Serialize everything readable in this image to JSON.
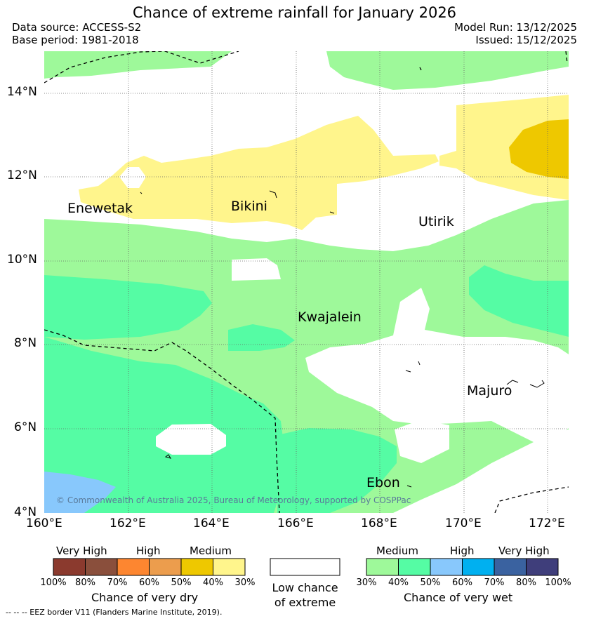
{
  "header": {
    "title": "Chance of extreme rainfall for January 2026",
    "data_source": "Data source: ACCESS-S2",
    "base_period": "Base period: 1981-2018",
    "model_run": "Model Run: 13/12/2025",
    "issued": "Issued: 15/12/2025"
  },
  "map": {
    "lat_labels": [
      "14°N",
      "12°N",
      "10°N",
      "8°N",
      "6°N",
      "4°N"
    ],
    "lon_labels": [
      "160°E",
      "162°E",
      "164°E",
      "166°E",
      "168°E",
      "170°E",
      "172°E"
    ],
    "places": [
      "Enewetak",
      "Bikini",
      "Utirik",
      "Kwajalein",
      "Majuro",
      "Ebon"
    ],
    "copyright": "© Commonwealth of Australia 2025, Bureau of Meteorology, supported by COSPPac",
    "colors": {
      "dry_medium_40": "#fff58c",
      "dry_medium_50": "#eec800",
      "wet_medium_30": "#9ef99a",
      "wet_medium_40": "#55fca4",
      "wet_high_50": "#88c8fc"
    }
  },
  "legend": {
    "dry": {
      "captions": [
        "Very High",
        "High",
        "Medium"
      ],
      "colors": [
        "#8b3a2e",
        "#8a4f3c",
        "#fd8630",
        "#ec9d4d",
        "#eec800",
        "#fff58c"
      ],
      "percents": [
        "100%",
        "80%",
        "70%",
        "60%",
        "50%",
        "40%",
        "30%"
      ],
      "title": "Chance of very dry"
    },
    "neutral": {
      "line1": "Low chance",
      "line2": "of extreme"
    },
    "wet": {
      "captions": [
        "Medium",
        "High",
        "Very High"
      ],
      "colors": [
        "#9ef99a",
        "#55fca4",
        "#88c8fc",
        "#00b0f0",
        "#3a62a0",
        "#3f3e7b"
      ],
      "percents": [
        "30%",
        "40%",
        "50%",
        "60%",
        "70%",
        "80%",
        "100%"
      ],
      "title": "Chance of very wet"
    }
  },
  "footer": {
    "eez_note": "--  --  -- EEZ border V11 (Flanders Marine Institute, 2019)."
  }
}
